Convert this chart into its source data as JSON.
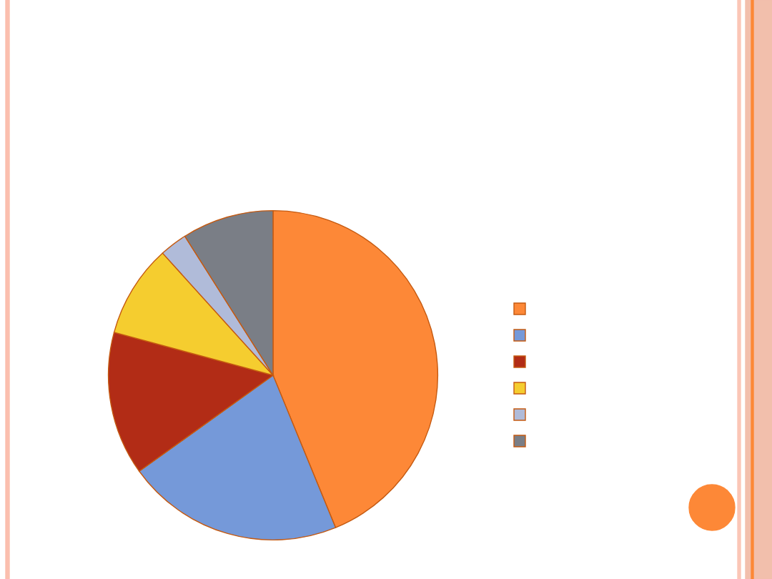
{
  "chart_data": {
    "type": "pie",
    "categories": [
      null,
      null,
      null,
      null,
      null,
      null
    ],
    "values": [
      43.8,
      21.3,
      14.1,
      9.1,
      2.7,
      9.0
    ],
    "colors": [
      "#fd8837",
      "#7599d9",
      "#b22c16",
      "#f5cd2f",
      "#b0bbd9",
      "#7a7e86"
    ]
  }
}
